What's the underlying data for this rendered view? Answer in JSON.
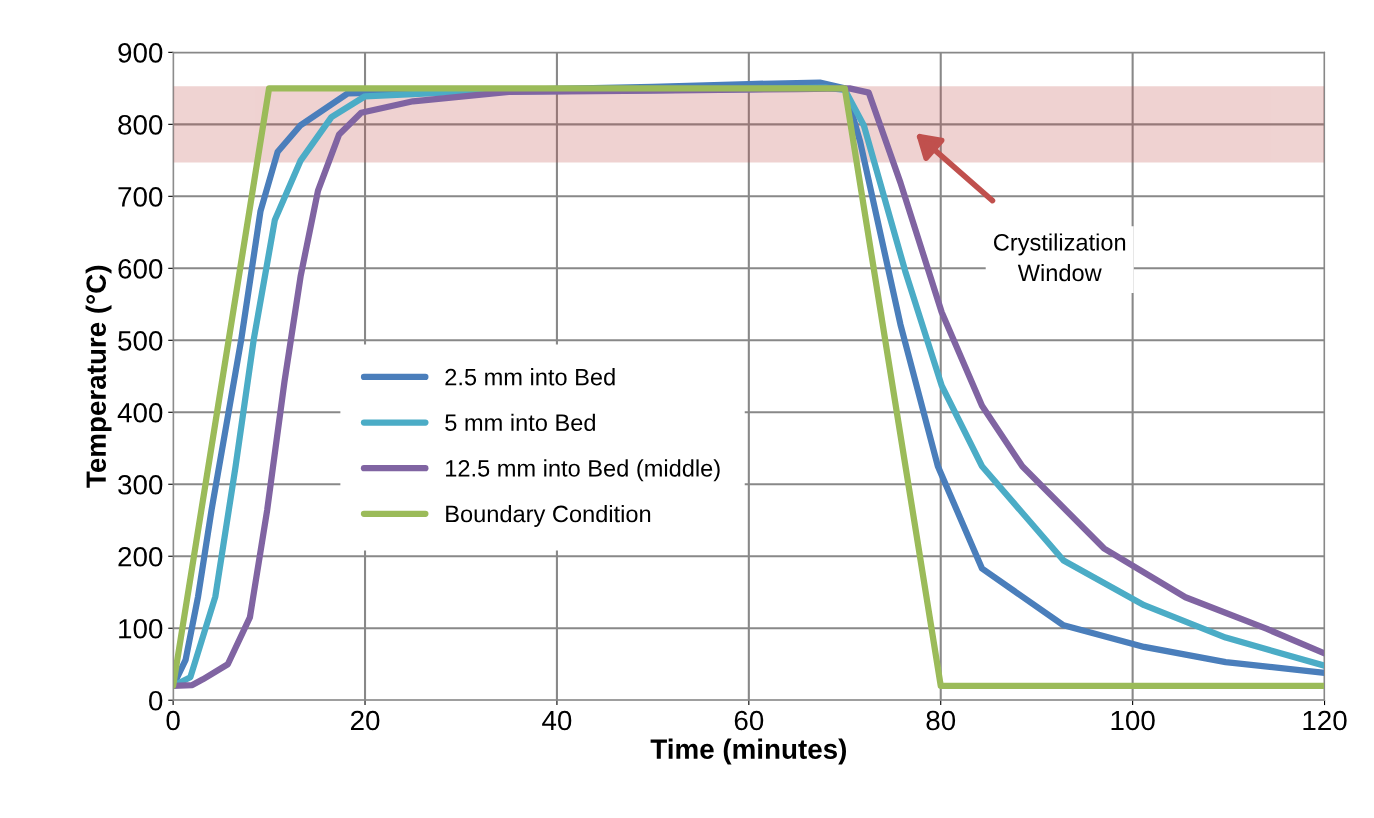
{
  "chart_data": {
    "type": "line",
    "xlabel": "Time (minutes)",
    "ylabel": "Temperature (°C)",
    "xlim": [
      0,
      120
    ],
    "xticks": [
      0,
      20,
      40,
      60,
      80,
      100,
      120
    ],
    "ylim": [
      0,
      900
    ],
    "yticks": [
      0,
      100,
      200,
      300,
      400,
      500,
      600,
      700,
      800,
      900
    ],
    "grid": true,
    "legend": "center left",
    "marker": "none",
    "line_style": "solid",
    "bands": [
      {
        "axis": "y",
        "from": 750,
        "to": 850,
        "color": "#c0504d"
      }
    ],
    "annotations": [
      "Crystilization\nWindow"
    ],
    "series": [
      {
        "name": "2.5 mm into Bed",
        "color": "#4a7ebb",
        "x": [
          0,
          1.3,
          2.6,
          4,
          7.1,
          9.1,
          10.9,
          13.3,
          18.2,
          25,
          35,
          50,
          60,
          67.4,
          70,
          71.6,
          75.8,
          79.7,
          84.3,
          92.8,
          101.2,
          109.7,
          120
        ],
        "values": [
          20,
          56,
          144,
          264,
          501,
          679,
          762,
          799,
          843,
          845,
          848,
          852,
          856,
          858,
          850,
          776,
          522,
          325,
          183,
          104,
          74,
          53,
          38
        ]
      },
      {
        "name": "5 mm into Bed",
        "color": "#4bacc6",
        "x": [
          0,
          1.8,
          4.4,
          6.5,
          8.4,
          10.6,
          13.3,
          16.5,
          20,
          30,
          45,
          60,
          68,
          70,
          72,
          76.3,
          80.1,
          84.3,
          92.8,
          101.2,
          109.7,
          120
        ],
        "values": [
          20,
          32,
          144,
          324,
          501,
          667,
          750,
          810,
          839,
          845,
          847,
          849,
          851,
          848,
          798,
          596,
          437,
          325,
          194,
          132,
          87,
          48
        ]
      },
      {
        "name": "12.5 mm into Bed (middle)",
        "color": "#8064a2",
        "x": [
          0,
          2,
          3.1,
          5.7,
          8,
          9.8,
          11.6,
          13.3,
          15.1,
          17.3,
          19.6,
          25,
          35,
          50,
          65,
          70.5,
          72.5,
          75.8,
          80.1,
          84.3,
          88.5,
          97,
          105.5,
          114,
          120
        ],
        "values": [
          20,
          21,
          29,
          50,
          115,
          264,
          442,
          590,
          708,
          786,
          816,
          832,
          845,
          847,
          849,
          850,
          844,
          719,
          539,
          409,
          325,
          211,
          143,
          99,
          65
        ]
      },
      {
        "name": "Boundary Condition",
        "color": "#9bbb59",
        "x": [
          0,
          10,
          70,
          80,
          120
        ],
        "values": [
          20,
          850,
          850,
          20,
          20
        ]
      }
    ]
  }
}
